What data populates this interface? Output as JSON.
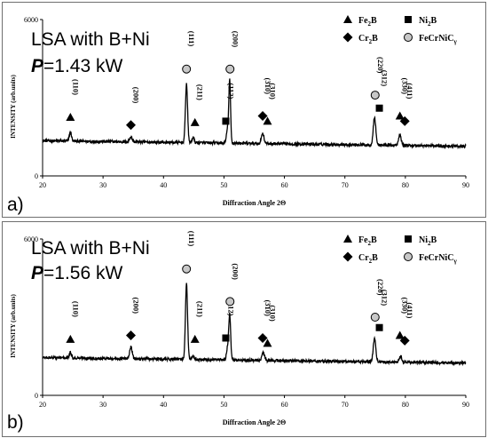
{
  "panels": [
    {
      "panel_label": "a)",
      "title_line1": "LSA with B+Ni",
      "title_p": "P",
      "title_power": "=1.43 kW",
      "ylabel": "INTENSITY (arb.units)",
      "xlabel": "Diffraction Angle 2Θ"
    },
    {
      "panel_label": "b)",
      "title_line1": "LSA with B+Ni",
      "title_p": "P",
      "title_power": "=1.56 kW",
      "ylabel": "INTENSITY (arb.units)",
      "xlabel": "Diffraction Angle 2Θ"
    }
  ],
  "legend": [
    {
      "symbol": "triangle",
      "name": "Fe",
      "sub": "2",
      "rest": "B"
    },
    {
      "symbol": "square",
      "name": "Ni",
      "sub": "2",
      "rest": "B"
    },
    {
      "symbol": "diamond",
      "name": "Cr",
      "sub": "2",
      "rest": "B"
    },
    {
      "symbol": "circle",
      "name": "FeCrNiC",
      "sub": "γ",
      "rest": ""
    }
  ],
  "chart_data": [
    {
      "type": "line",
      "title": "LSA with B+Ni P=1.43 kW",
      "xlabel": "Diffraction Angle 2Θ",
      "ylabel": "INTENSITY (arb.units)",
      "xlim": [
        20,
        90
      ],
      "ylim": [
        0,
        6000
      ],
      "x_ticks": [
        20,
        30,
        40,
        50,
        60,
        70,
        80,
        90
      ],
      "y_ticks": [
        0,
        6000
      ],
      "baseline": 1350,
      "peaks": [
        {
          "x": 24.6,
          "y": 1700,
          "w": 0.25
        },
        {
          "x": 34.6,
          "y": 1550,
          "w": 0.3
        },
        {
          "x": 43.8,
          "y": 3600,
          "w": 0.25
        },
        {
          "x": 44.9,
          "y": 1550,
          "w": 0.25
        },
        {
          "x": 50.6,
          "y": 1900,
          "w": 0.25
        },
        {
          "x": 50.95,
          "y": 3700,
          "w": 0.2
        },
        {
          "x": 56.4,
          "y": 1750,
          "w": 0.3
        },
        {
          "x": 74.9,
          "y": 2400,
          "w": 0.3
        },
        {
          "x": 79.1,
          "y": 1750,
          "w": 0.3
        }
      ],
      "annotations": [
        {
          "label": "(110)",
          "x": 24.6,
          "y": 2250,
          "symbol": "triangle"
        },
        {
          "label": "(200)",
          "x": 34.6,
          "y": 1950,
          "symbol": "diamond"
        },
        {
          "label": "(111)",
          "x": 43.8,
          "y": 4100,
          "symbol": "circle"
        },
        {
          "label": "(211)",
          "x": 45.2,
          "y": 2050,
          "symbol": "triangle"
        },
        {
          "label": "(112)",
          "x": 50.3,
          "y": 2100,
          "symbol": "square"
        },
        {
          "label": "(200)",
          "x": 51.0,
          "y": 4100,
          "symbol": "circle"
        },
        {
          "label": "(310)",
          "x": 56.4,
          "y": 2300,
          "symbol": "diamond"
        },
        {
          "label": "(310)",
          "x": 57.2,
          "y": 2100,
          "symbol": "triangle"
        },
        {
          "label": "(220)",
          "x": 75.0,
          "y": 3100,
          "symbol": "circle"
        },
        {
          "label": "(312)",
          "x": 75.7,
          "y": 2600,
          "symbol": "square"
        },
        {
          "label": "(330)",
          "x": 79.1,
          "y": 2300,
          "symbol": "triangle"
        },
        {
          "label": "(411)",
          "x": 79.9,
          "y": 2100,
          "symbol": "diamond"
        }
      ]
    },
    {
      "type": "line",
      "title": "LSA with B+Ni P=1.56 kW",
      "xlabel": "Diffraction Angle 2Θ",
      "ylabel": "INTENSITY (arb.units)",
      "xlim": [
        20,
        90
      ],
      "ylim": [
        0,
        6000
      ],
      "x_ticks": [
        20,
        30,
        40,
        50,
        60,
        70,
        80,
        90
      ],
      "y_ticks": [
        0,
        6000
      ],
      "baseline": 1450,
      "peaks": [
        {
          "x": 24.6,
          "y": 1650,
          "w": 0.25
        },
        {
          "x": 34.6,
          "y": 1900,
          "w": 0.3
        },
        {
          "x": 43.8,
          "y": 4350,
          "w": 0.25
        },
        {
          "x": 44.9,
          "y": 1600,
          "w": 0.25
        },
        {
          "x": 50.6,
          "y": 1900,
          "w": 0.25
        },
        {
          "x": 50.95,
          "y": 3150,
          "w": 0.22
        },
        {
          "x": 56.5,
          "y": 1750,
          "w": 0.3
        },
        {
          "x": 74.9,
          "y": 2350,
          "w": 0.3
        },
        {
          "x": 79.2,
          "y": 1700,
          "w": 0.3
        }
      ],
      "annotations": [
        {
          "label": "(110)",
          "x": 24.6,
          "y": 2150,
          "symbol": "triangle"
        },
        {
          "label": "(200)",
          "x": 34.6,
          "y": 2300,
          "symbol": "diamond"
        },
        {
          "label": "(111)",
          "x": 43.8,
          "y": 4850,
          "symbol": "circle"
        },
        {
          "label": "(211)",
          "x": 45.2,
          "y": 2150,
          "symbol": "triangle"
        },
        {
          "label": "(112)",
          "x": 50.3,
          "y": 2200,
          "symbol": "square"
        },
        {
          "label": "(200)",
          "x": 51.0,
          "y": 3600,
          "symbol": "circle"
        },
        {
          "label": "(310)",
          "x": 56.4,
          "y": 2200,
          "symbol": "diamond"
        },
        {
          "label": "(310)",
          "x": 57.2,
          "y": 2000,
          "symbol": "triangle"
        },
        {
          "label": "(220)",
          "x": 75.0,
          "y": 3000,
          "symbol": "circle"
        },
        {
          "label": "(312)",
          "x": 75.7,
          "y": 2600,
          "symbol": "square"
        },
        {
          "label": "(330)",
          "x": 79.1,
          "y": 2300,
          "symbol": "triangle"
        },
        {
          "label": "(411)",
          "x": 79.9,
          "y": 2100,
          "symbol": "diamond"
        }
      ]
    }
  ]
}
